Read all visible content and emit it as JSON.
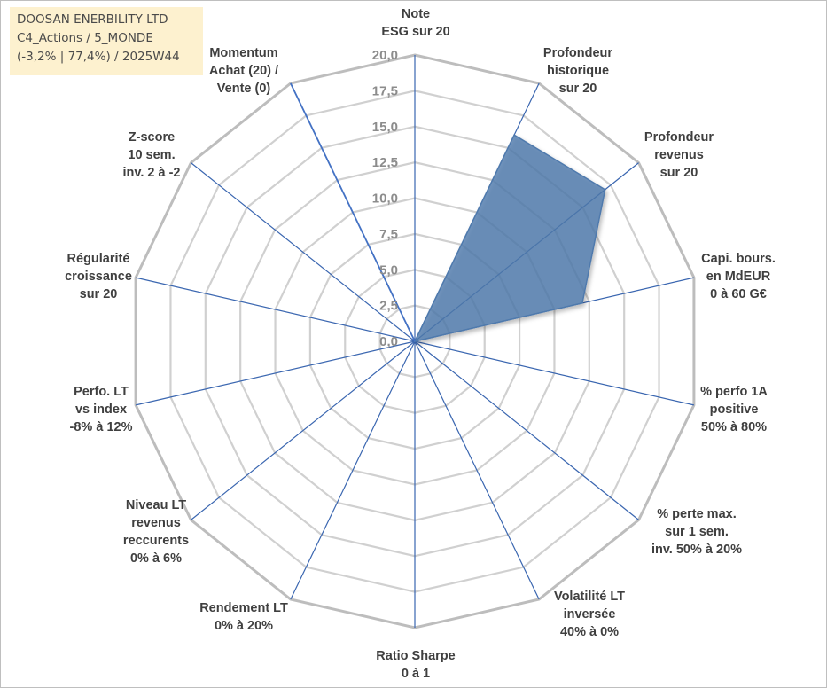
{
  "title_box": {
    "line1": "DOOSAN ENERBILITY LTD",
    "line2": "C4_Actions / 5_MONDE",
    "line3": "(-3,2% | 77,4%) / 2025W44"
  },
  "chart_data": {
    "type": "radar",
    "title": "DOOSAN ENERBILITY LTD",
    "axes": [
      [
        "Note",
        "ESG sur 20"
      ],
      [
        "Profondeur",
        "historique",
        "sur 20"
      ],
      [
        "Profondeur",
        "revenus",
        "sur 20"
      ],
      [
        "Capi. bours.",
        "en MdEUR",
        "0 à 60 G€"
      ],
      [
        "% perfo 1A",
        "positive",
        "50% à 80%"
      ],
      [
        "% perte max.",
        "sur 1 sem.",
        "inv. 50% à 20%"
      ],
      [
        "Volatilité LT",
        "inversée",
        "40% à 0%"
      ],
      [
        "Ratio Sharpe",
        "0 à 1"
      ],
      [
        "Rendement LT",
        "0% à 20%"
      ],
      [
        "Niveau LT",
        "revenus",
        "reccurents",
        "0% à 6%"
      ],
      [
        "Perfo. LT",
        "vs index",
        "-8% à 12%"
      ],
      [
        "Régularité",
        "croissance",
        "sur 20"
      ],
      [
        "Z-score",
        "10 sem.",
        "inv. 2 à -2"
      ],
      [
        "Momentum",
        "Achat (20) /",
        "Vente (0)"
      ]
    ],
    "range": [
      0,
      20
    ],
    "tick_labels": [
      "0,0",
      "2,5",
      "5,0",
      "7,5",
      "10,0",
      "12,5",
      "15,0",
      "17,5",
      "20,0"
    ],
    "series": [
      {
        "name": "DOOSAN ENERBILITY LTD",
        "values": [
          0,
          16,
          17,
          12,
          0,
          0,
          0,
          0,
          0,
          0,
          0,
          0,
          0,
          0
        ],
        "color": "#4f7aad"
      },
      {
        "name": "Momentum",
        "values": [
          0,
          0,
          0,
          0,
          0,
          0,
          0,
          0,
          0,
          0,
          0,
          0,
          0,
          20
        ],
        "color": "#4472c4"
      }
    ],
    "grid": true
  }
}
